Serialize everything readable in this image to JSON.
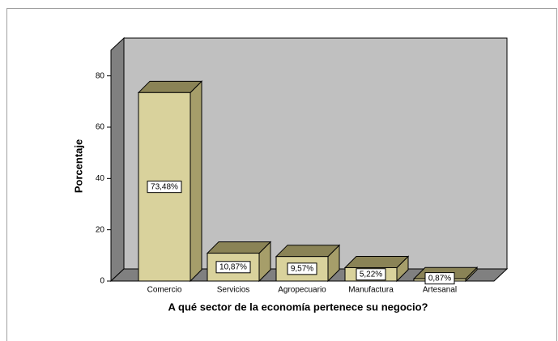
{
  "chart_data": {
    "type": "bar3d",
    "x_label": "A qué sector de la economía pertenece su negocio?",
    "y_label": "Porcentaje",
    "categories": [
      "Comercio",
      "Servicios",
      "Agropecuario",
      "Manufactura",
      "Artesanal"
    ],
    "values": [
      73.48,
      10.87,
      9.57,
      5.22,
      0.87
    ],
    "value_labels": [
      "73,48%",
      "10,87%",
      "9,57%",
      "5,22%",
      "0,87%"
    ],
    "color": "#d9d29c",
    "ylim": [
      0,
      90
    ],
    "yticks": [
      0,
      20,
      40,
      60,
      80
    ]
  }
}
